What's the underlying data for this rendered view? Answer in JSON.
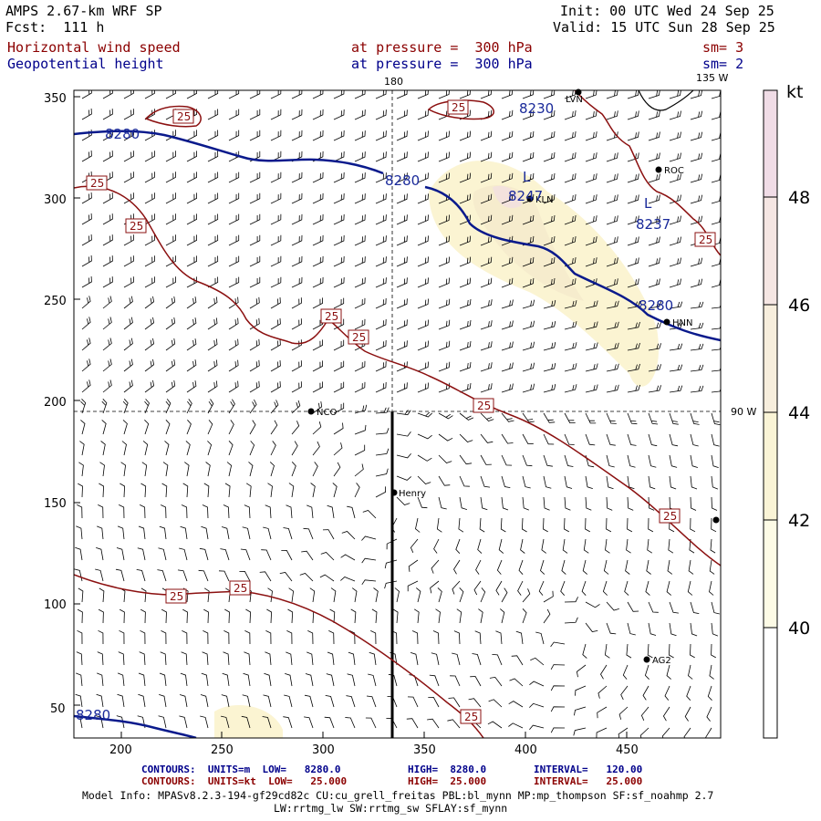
{
  "header": {
    "model": "AMPS 2.67-km WRF SP",
    "fcst": "Fcst:  111 h",
    "init": "Init: 00 UTC Wed 24 Sep 25",
    "valid": "Valid: 15 UTC Sun 28 Sep 25",
    "field1": "Horizontal wind speed",
    "field1_level": "at pressure =  300 hPa",
    "field1_sm": "sm= 3",
    "field2": "Geopotential height",
    "field2_level": "at pressure =  300 hPa",
    "field2_sm": "sm= 2"
  },
  "map": {
    "lon_labels": [
      "180",
      "135 W",
      "90 W"
    ],
    "x_ticks": [
      "200",
      "250",
      "300",
      "350",
      "400",
      "450"
    ],
    "y_ticks": [
      "50",
      "100",
      "150",
      "200",
      "250",
      "300",
      "350"
    ],
    "height_labels": [
      "8280",
      "8280",
      "8280",
      "8230",
      "8237",
      "8247",
      "8280"
    ],
    "low_markers": [
      "L",
      "L"
    ],
    "wind_labels": [
      "25",
      "25",
      "25",
      "25",
      "25",
      "25",
      "25",
      "25",
      "25",
      "25"
    ],
    "stations": [
      "LVN",
      "ROC",
      "KLN",
      "HNN",
      "NCO",
      "Henry",
      "AG2"
    ]
  },
  "colorbar": {
    "unit": "kt",
    "labels": [
      "48",
      "46",
      "44",
      "42",
      "40"
    ],
    "colors": [
      "#f0dce6",
      "#f5e6e3",
      "#f7eedd",
      "#faf4d6",
      "#fdfbe6",
      "#ffffff"
    ]
  },
  "footer": {
    "line1_a": "CONTOURS:  UNITS=m  LOW=   8280.0",
    "line1_b": "HIGH=  8280.0",
    "line1_c": "INTERVAL=   120.00",
    "line2_a": "CONTOURS:  UNITS=kt  LOW=   25.000",
    "line2_b": "HIGH=  25.000",
    "line2_c": "INTERVAL=   25.000",
    "model_info": "Model Info: MPASv8.2.3-194-gf29cd82c CU:cu_grell_freitas PBL:bl_mynn MP:mp_thompson SF:sf_noahmp 2.7",
    "model_info2": "LW:rrtmg_lw SW:rrtmg_sw SFLAY:sf_mynn"
  }
}
